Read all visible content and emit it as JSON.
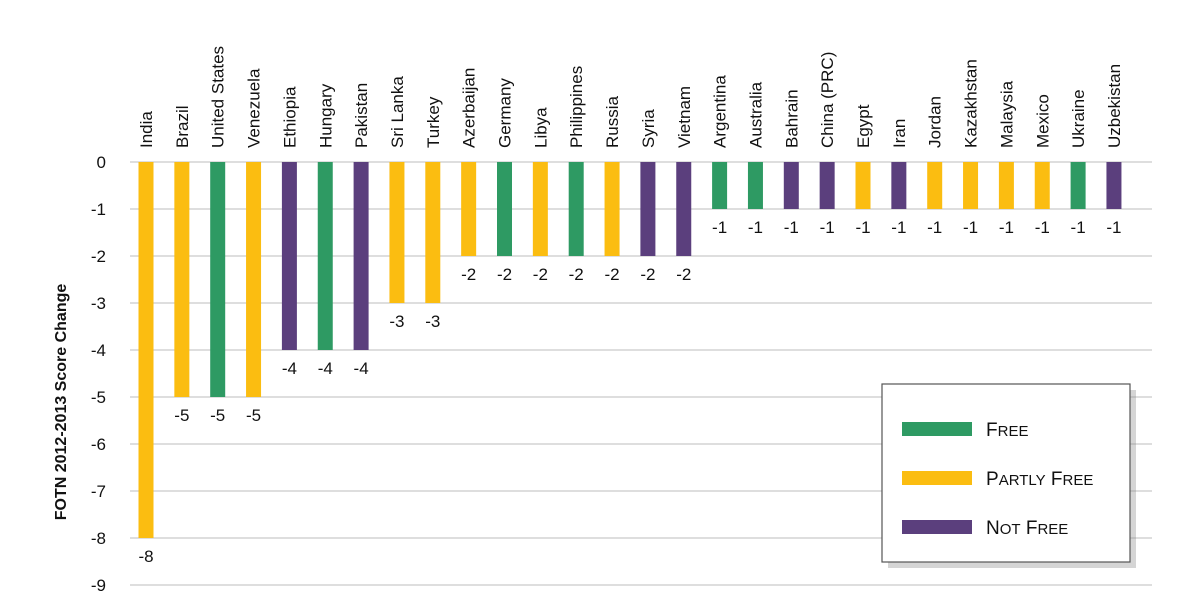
{
  "chart_data": {
    "type": "bar",
    "ylabel": "FOTN 2012-2013 Score Change",
    "ylim": [
      -9,
      0
    ],
    "yticks": [
      "0",
      "-1",
      "-2",
      "-3",
      "-4",
      "-5",
      "-6",
      "-7",
      "-8",
      "-9"
    ],
    "grid": true,
    "legend_position": "bottom-right",
    "categories": [
      "India",
      "Brazil",
      "United States",
      "Venezuela",
      "Ethiopia",
      "Hungary",
      "Pakistan",
      "Sri Lanka",
      "Turkey",
      "Azerbaijan",
      "Germany",
      "Libya",
      "Philippines",
      "Russia",
      "Syria",
      "Vietnam",
      "Argentina",
      "Australia",
      "Bahrain",
      "China (PRC)",
      "Egypt",
      "Iran",
      "Jordan",
      "Kazakhstan",
      "Malaysia",
      "Mexico",
      "Ukraine",
      "Uzbekistan"
    ],
    "values": [
      -8,
      -5,
      -5,
      -5,
      -4,
      -4,
      -4,
      -3,
      -3,
      -2,
      -2,
      -2,
      -2,
      -2,
      -2,
      -2,
      -1,
      -1,
      -1,
      -1,
      -1,
      -1,
      -1,
      -1,
      -1,
      -1,
      -1,
      -1
    ],
    "value_labels": [
      "-8",
      "-5",
      "-5",
      "-5",
      "-4",
      "-4",
      "-4",
      "-3",
      "-3",
      "-2",
      "-2",
      "-2",
      "-2",
      "-2",
      "-2",
      "-2",
      "-1",
      "-1",
      "-1",
      "-1",
      "-1",
      "-1",
      "-1",
      "-1",
      "-1",
      "-1",
      "-1",
      "-1"
    ],
    "status": [
      "Partly Free",
      "Partly Free",
      "Free",
      "Partly Free",
      "Not Free",
      "Free",
      "Not Free",
      "Partly Free",
      "Partly Free",
      "Partly Free",
      "Free",
      "Partly Free",
      "Free",
      "Partly Free",
      "Not Free",
      "Not Free",
      "Free",
      "Free",
      "Not Free",
      "Not Free",
      "Partly Free",
      "Not Free",
      "Partly Free",
      "Partly Free",
      "Partly Free",
      "Partly Free",
      "Free",
      "Not Free"
    ],
    "legend": [
      {
        "key": "Free",
        "label": "Free",
        "color": "#2e9a63"
      },
      {
        "key": "Partly Free",
        "label": "Partly Free",
        "color": "#fbbd11"
      },
      {
        "key": "Not Free",
        "label": "Not Free",
        "color": "#5b3f7d"
      }
    ]
  }
}
